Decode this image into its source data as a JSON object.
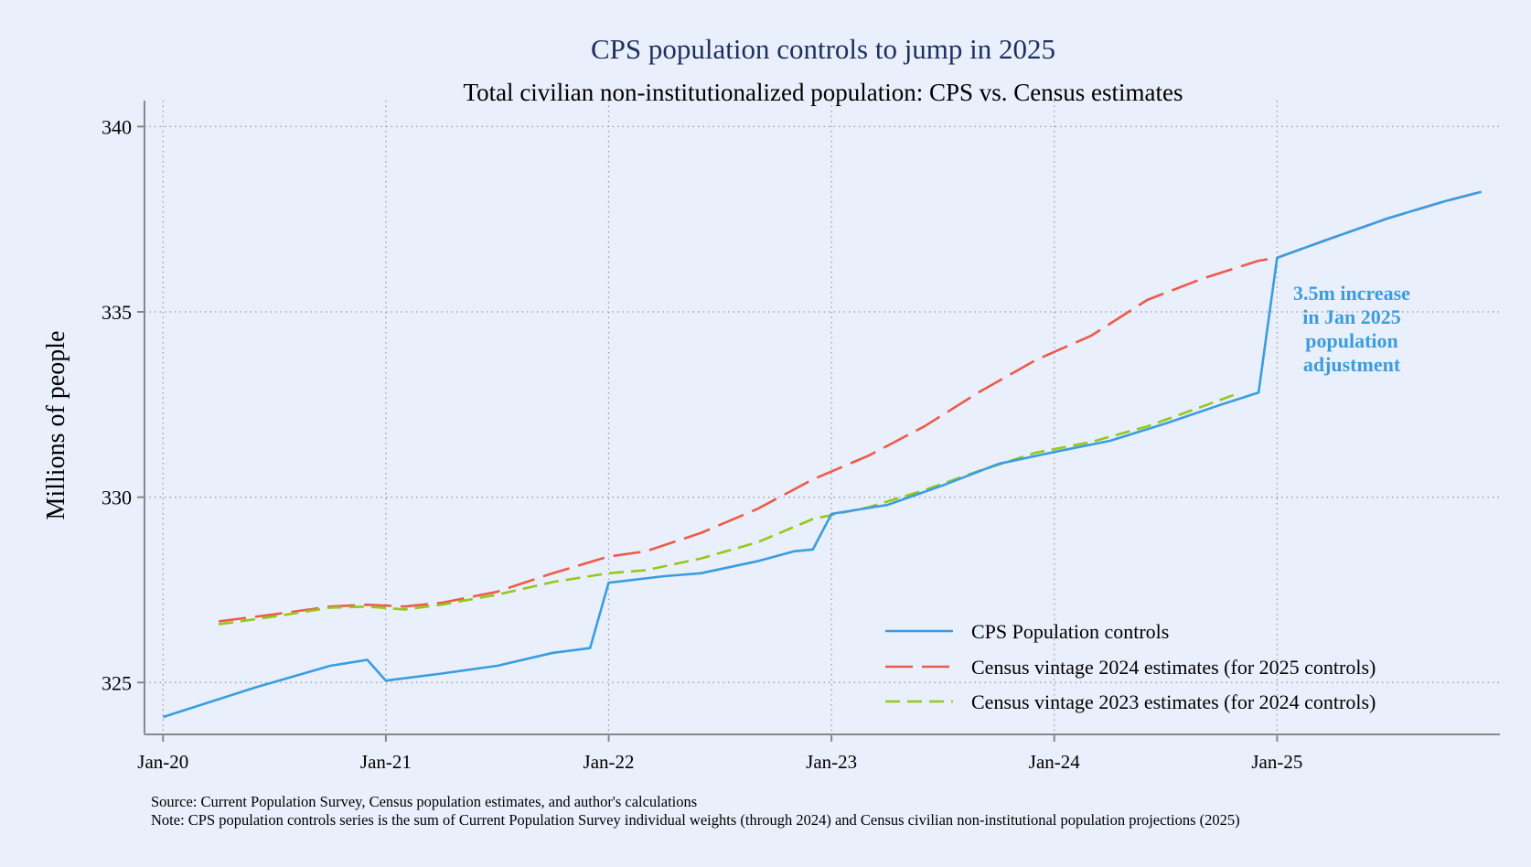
{
  "chart_data": {
    "type": "line",
    "title": "CPS population controls to jump in 2025",
    "subtitle": "Total civilian non-institutionalized population: CPS vs. Census estimates",
    "xlabel": "",
    "ylabel": "Millions of people",
    "x_ticks": [
      {
        "date": "2020-01",
        "label": "Jan-20"
      },
      {
        "date": "2021-01",
        "label": "Jan-21"
      },
      {
        "date": "2022-01",
        "label": "Jan-22"
      },
      {
        "date": "2023-01",
        "label": "Jan-23"
      },
      {
        "date": "2024-01",
        "label": "Jan-24"
      },
      {
        "date": "2025-01",
        "label": "Jan-25"
      }
    ],
    "y_ticks": [
      325,
      330,
      335,
      340
    ],
    "xlim": [
      "2019-12",
      "2026-01"
    ],
    "ylim": [
      323.6,
      340.7
    ],
    "grid": true,
    "legend_position": "bottom-right",
    "series": [
      {
        "name": "CPS Population controls",
        "color": "#3a9de0",
        "style": "solid",
        "points": [
          [
            "2020-01",
            324.07
          ],
          [
            "2020-06",
            324.87
          ],
          [
            "2020-10",
            325.45
          ],
          [
            "2020-12",
            325.61
          ],
          [
            "2021-01",
            325.05
          ],
          [
            "2021-04",
            325.24
          ],
          [
            "2021-07",
            325.45
          ],
          [
            "2021-10",
            325.8
          ],
          [
            "2021-12",
            325.93
          ],
          [
            "2022-01",
            327.69
          ],
          [
            "2022-04",
            327.87
          ],
          [
            "2022-06",
            327.95
          ],
          [
            "2022-09",
            328.27
          ],
          [
            "2022-11",
            328.54
          ],
          [
            "2022-12",
            328.59
          ],
          [
            "2023-01",
            329.55
          ],
          [
            "2023-04",
            329.79
          ],
          [
            "2023-07",
            330.32
          ],
          [
            "2023-10",
            330.9
          ],
          [
            "2024-01",
            331.22
          ],
          [
            "2024-04",
            331.52
          ],
          [
            "2024-07",
            331.99
          ],
          [
            "2024-10",
            332.5
          ],
          [
            "2024-12",
            332.82
          ],
          [
            "2025-01",
            336.46
          ],
          [
            "2025-04",
            337.0
          ],
          [
            "2025-07",
            337.53
          ],
          [
            "2025-10",
            337.98
          ],
          [
            "2025-12",
            338.24
          ]
        ]
      },
      {
        "name": "Census vintage 2024 estimates (for 2025 controls)",
        "color": "#ee5a4a",
        "style": "long-dash",
        "points": [
          [
            "2020-04",
            326.65
          ],
          [
            "2020-07",
            326.84
          ],
          [
            "2020-10",
            327.05
          ],
          [
            "2020-12",
            327.1
          ],
          [
            "2021-02",
            327.05
          ],
          [
            "2021-04",
            327.15
          ],
          [
            "2021-07",
            327.45
          ],
          [
            "2021-10",
            327.95
          ],
          [
            "2022-01",
            328.4
          ],
          [
            "2022-03",
            328.54
          ],
          [
            "2022-06",
            329.04
          ],
          [
            "2022-09",
            329.68
          ],
          [
            "2022-12",
            330.48
          ],
          [
            "2023-03",
            331.12
          ],
          [
            "2023-06",
            331.91
          ],
          [
            "2023-09",
            332.85
          ],
          [
            "2023-12",
            333.7
          ],
          [
            "2024-03",
            334.36
          ],
          [
            "2024-06",
            335.32
          ],
          [
            "2024-09",
            335.9
          ],
          [
            "2024-12",
            336.38
          ],
          [
            "2025-01",
            336.46
          ],
          [
            "2025-04",
            337.0
          ],
          [
            "2025-07",
            337.53
          ],
          [
            "2025-10",
            337.98
          ],
          [
            "2025-12",
            338.24
          ]
        ]
      },
      {
        "name": "Census vintage 2023 estimates (for 2024 controls)",
        "color": "#94c819",
        "style": "short-dash",
        "points": [
          [
            "2020-04",
            326.57
          ],
          [
            "2020-07",
            326.78
          ],
          [
            "2020-10",
            327.02
          ],
          [
            "2020-12",
            327.05
          ],
          [
            "2021-02",
            326.97
          ],
          [
            "2021-04",
            327.1
          ],
          [
            "2021-07",
            327.37
          ],
          [
            "2021-10",
            327.71
          ],
          [
            "2022-01",
            327.95
          ],
          [
            "2022-03",
            328.03
          ],
          [
            "2022-06",
            328.35
          ],
          [
            "2022-09",
            328.78
          ],
          [
            "2022-12",
            329.41
          ],
          [
            "2023-03",
            329.73
          ],
          [
            "2023-06",
            330.19
          ],
          [
            "2023-09",
            330.72
          ],
          [
            "2023-12",
            331.2
          ],
          [
            "2024-03",
            331.49
          ],
          [
            "2024-06",
            331.91
          ],
          [
            "2024-09",
            332.45
          ],
          [
            "2024-11",
            332.82
          ]
        ]
      }
    ],
    "annotation": {
      "lines": [
        "3.5m increase",
        "in Jan 2025",
        "population",
        "adjustment"
      ],
      "color": "#3a9de0"
    },
    "notes": [
      "Source: Current Population Survey, Census population estimates, and author's calculations",
      "Note: CPS population controls series is the sum of Current Population Survey individual weights (through 2024) and Census civilian non-institutional population projections (2025)"
    ]
  }
}
